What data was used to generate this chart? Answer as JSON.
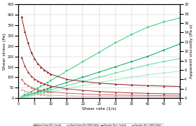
{
  "xlabel": "Shear rate (1/s)",
  "ylabel_left": "Shear stress (Pa)",
  "ylabel_right": "Apparent viscosity (Pa.s)",
  "xlim": [
    0,
    50
  ],
  "ylim_left": [
    0,
    450
  ],
  "ylim_right": [
    0,
    20
  ],
  "shear_rate": [
    1,
    2,
    3,
    4,
    5,
    6,
    7,
    8,
    9,
    10,
    15,
    20,
    25,
    30,
    35,
    40,
    45,
    50
  ],
  "shear_stress": {
    "Control": [
      5,
      10,
      15,
      20,
      25,
      30,
      35,
      40,
      45,
      50,
      75,
      100,
      125,
      150,
      175,
      200,
      230,
      260
    ],
    "100Isomat": [
      8,
      16,
      24,
      32,
      40,
      48,
      57,
      66,
      75,
      84,
      130,
      175,
      220,
      265,
      305,
      340,
      365,
      385
    ],
    "100Xylitol": [
      4,
      8,
      12,
      16,
      20,
      24,
      28,
      32,
      36,
      40,
      60,
      80,
      100,
      120,
      140,
      160,
      175,
      190
    ],
    "100Maltitol": [
      3,
      6,
      9,
      12,
      15,
      18,
      21,
      24,
      27,
      30,
      45,
      60,
      75,
      88,
      100,
      112,
      120,
      130
    ]
  },
  "viscosity": {
    "Control": [
      390,
      320,
      265,
      220,
      190,
      165,
      150,
      135,
      125,
      115,
      90,
      80,
      72,
      67,
      63,
      60,
      58,
      56
    ],
    "100Isomat": [
      195,
      155,
      125,
      105,
      92,
      82,
      75,
      68,
      63,
      58,
      45,
      37,
      32,
      28,
      25,
      23,
      21,
      20
    ],
    "100Xylitol": [
      90,
      72,
      60,
      52,
      45,
      40,
      37,
      34,
      32,
      30,
      24,
      20,
      17,
      15,
      14,
      13,
      12,
      11
    ],
    "100Maltitol": [
      42,
      35,
      29,
      25,
      22,
      20,
      18,
      16,
      15,
      14,
      11,
      9,
      8,
      7.5,
      7,
      6.8,
      6.5,
      6.2
    ]
  },
  "ss_colors": {
    "Control": "#00aa55",
    "100Isomat": "#33cc77",
    "100Xylitol": "#55ddaa",
    "100Maltitol": "#99eebb"
  },
  "vis_colors": {
    "Control": "#8b1a1a",
    "100Isomat": "#aa3333",
    "100Xylitol": "#cc6666",
    "100Maltitol": "#ddaaaa"
  },
  "legend_labels": {
    "ss_Control": "Shear Stress (Pa)  Control",
    "ss_100Isomat": "Shear Stress (Pa) 100%Isomalt",
    "ss_100Xylitol": "Shear Stress (Pa) 100% Xylitol",
    "ss_100Maltitol": "Shear Stress (Pa) 100% Maltitol",
    "vis_Control": "Viscosity (Pa.s)  Control",
    "vis_100Isomat": "Viscosity (Pa.s) 100%Isomalt",
    "vis_100Xylitol": "Viscosity (Pa.s) 100% Xylitol",
    "vis_100Maltitol": "Viscosity (Pa.s) 100% Maltitol"
  }
}
